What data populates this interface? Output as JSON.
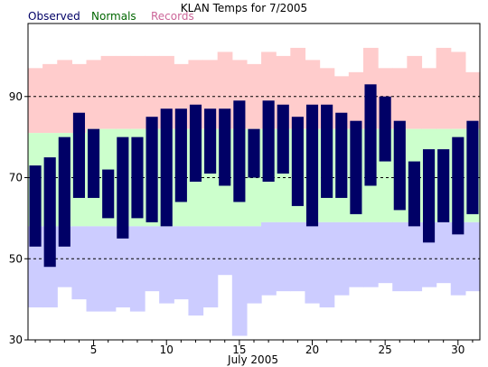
{
  "chart_data": {
    "type": "bar",
    "title": "KLAN Temps for 7/2005",
    "xlabel": "July 2005",
    "ylabel": "",
    "ylim": [
      30,
      108
    ],
    "xlim": [
      0.5,
      31.5
    ],
    "y_ticks": [
      30,
      50,
      70,
      90
    ],
    "x_ticks": [
      5,
      10,
      15,
      20,
      25,
      30
    ],
    "gridlines_y": [
      50,
      70,
      90
    ],
    "legend": [
      {
        "name": "Observed",
        "color": "#000066"
      },
      {
        "name": "Normals",
        "color": "#006600"
      },
      {
        "name": "Records",
        "color": "#cc6699"
      }
    ],
    "colors": {
      "observed_bar": "#000066",
      "records_band": "#ffcccc",
      "normals_band": "#ccffcc",
      "below_normal_band": "#ccccff"
    },
    "days": [
      1,
      2,
      3,
      4,
      5,
      6,
      7,
      8,
      9,
      10,
      11,
      12,
      13,
      14,
      15,
      16,
      17,
      18,
      19,
      20,
      21,
      22,
      23,
      24,
      25,
      26,
      27,
      28,
      29,
      30,
      31
    ],
    "observed_high": [
      73,
      75,
      80,
      86,
      82,
      72,
      80,
      80,
      85,
      87,
      87,
      88,
      87,
      87,
      89,
      82,
      89,
      88,
      85,
      88,
      88,
      86,
      84,
      93,
      90,
      84,
      74,
      77,
      77,
      80,
      84
    ],
    "observed_low": [
      53,
      48,
      53,
      65,
      65,
      60,
      55,
      60,
      59,
      58,
      64,
      69,
      71,
      68,
      64,
      70,
      69,
      71,
      63,
      58,
      65,
      65,
      61,
      68,
      74,
      62,
      58,
      54,
      59,
      56,
      61
    ],
    "normal_high": [
      81,
      81,
      81,
      81,
      82,
      82,
      82,
      82,
      82,
      82,
      82,
      82,
      82,
      82,
      82,
      82,
      82,
      82,
      82,
      82,
      82,
      82,
      82,
      82,
      82,
      82,
      82,
      82,
      82,
      82,
      82
    ],
    "normal_low": [
      58,
      58,
      58,
      58,
      58,
      58,
      58,
      58,
      58,
      58,
      58,
      58,
      58,
      58,
      58,
      58,
      59,
      59,
      59,
      59,
      59,
      59,
      59,
      59,
      59,
      59,
      59,
      59,
      59,
      59,
      59
    ],
    "record_high": [
      97,
      98,
      99,
      98,
      99,
      100,
      100,
      100,
      100,
      100,
      98,
      99,
      99,
      101,
      99,
      98,
      101,
      100,
      102,
      99,
      97,
      95,
      96,
      102,
      97,
      97,
      100,
      97,
      102,
      101,
      96
    ],
    "record_low": [
      38,
      38,
      43,
      40,
      37,
      37,
      38,
      37,
      42,
      39,
      40,
      36,
      38,
      46,
      31,
      39,
      41,
      42,
      42,
      39,
      38,
      41,
      43,
      43,
      44,
      42,
      42,
      43,
      44,
      41,
      42
    ]
  }
}
